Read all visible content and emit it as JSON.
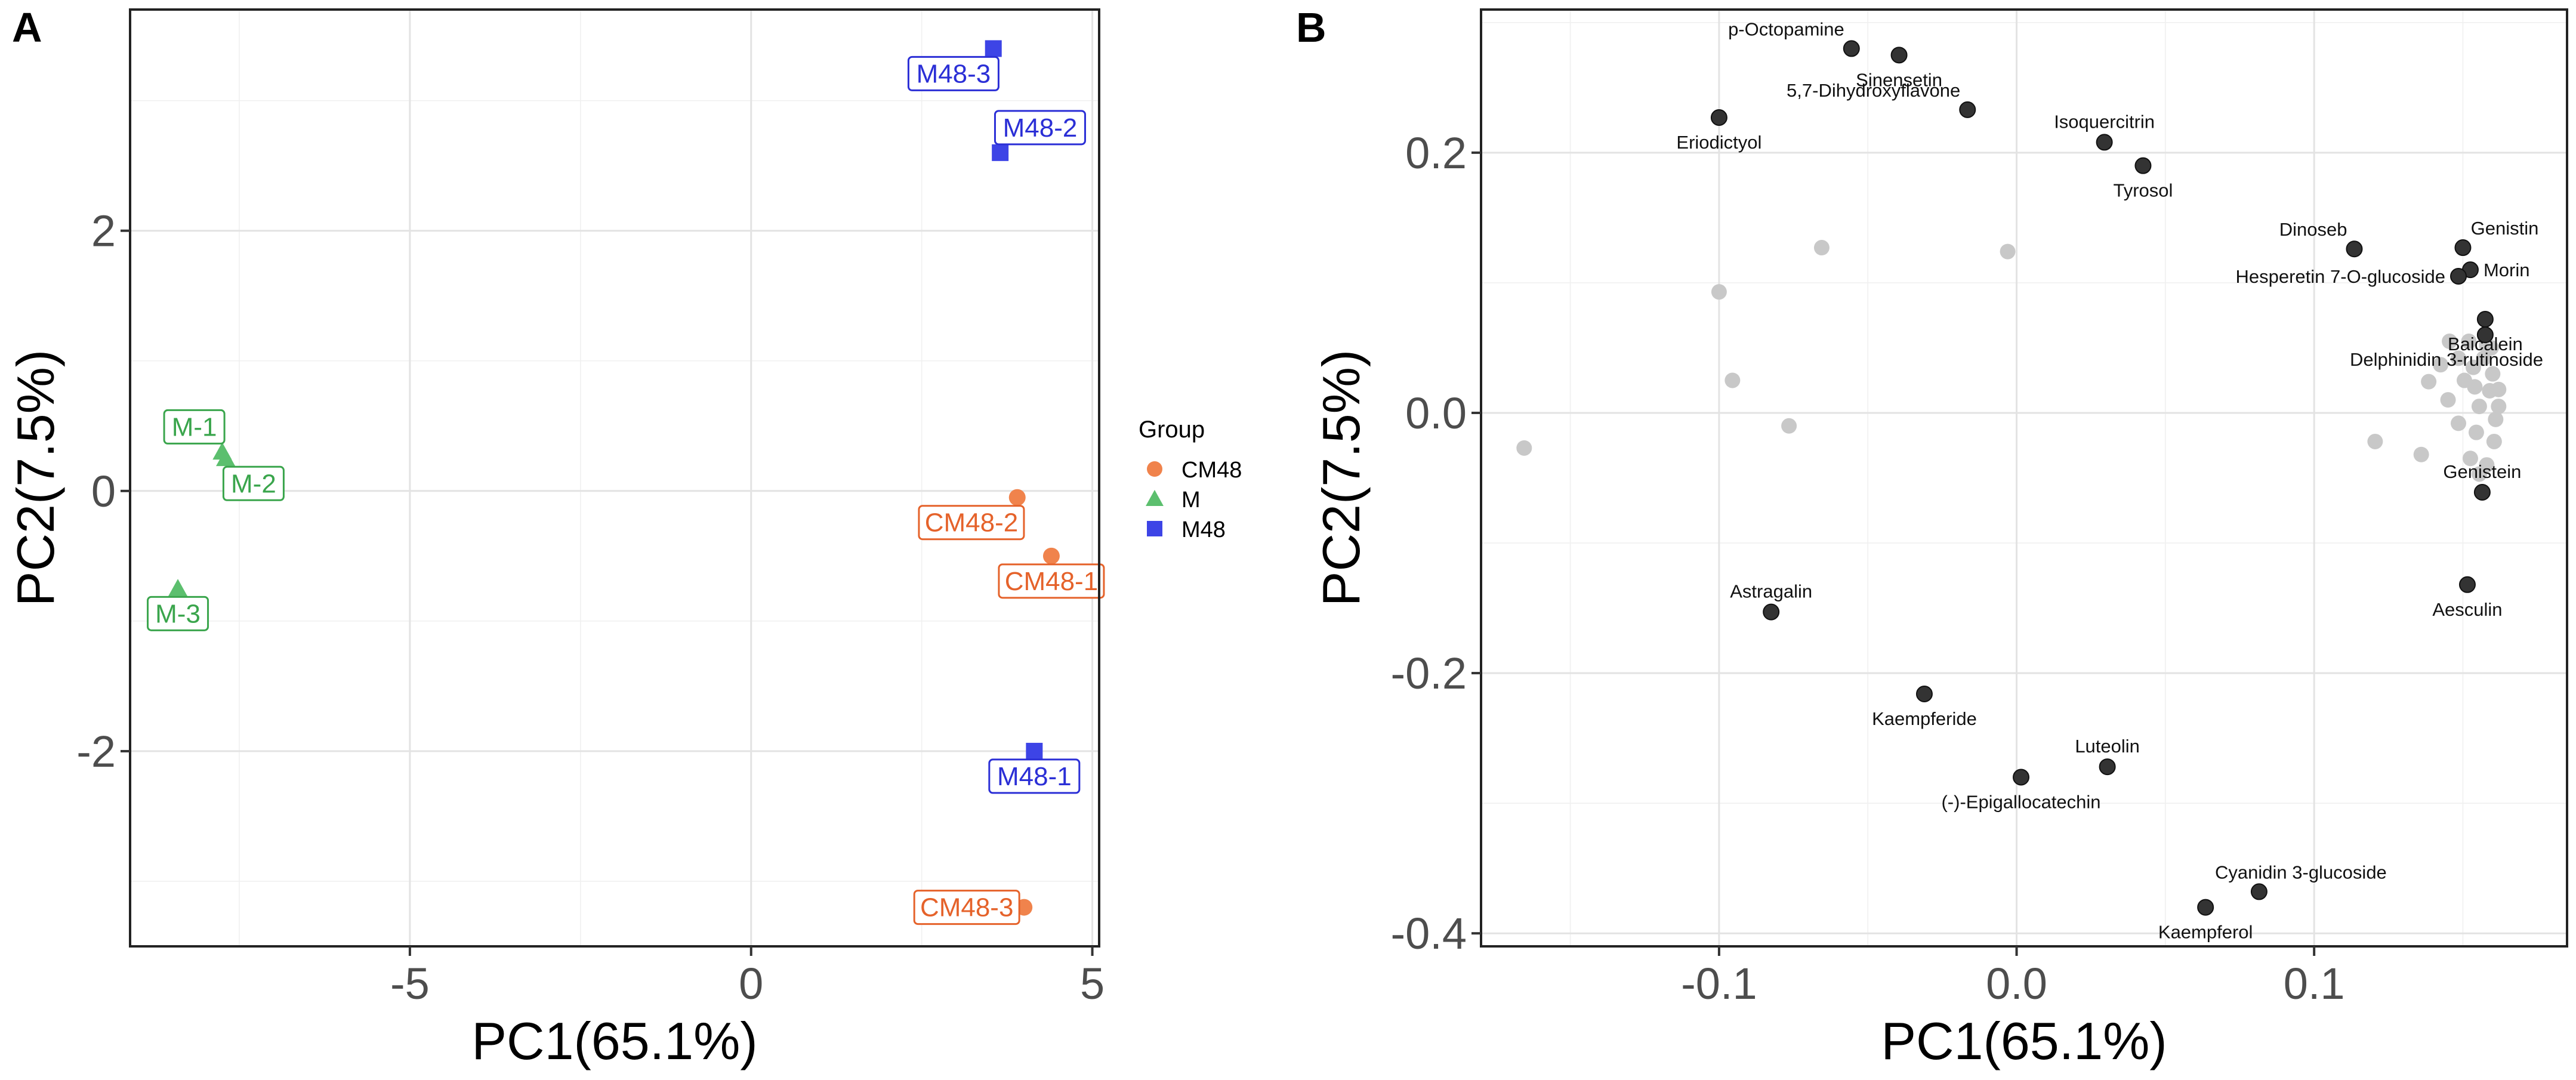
{
  "chart_data": [
    {
      "panel": "A",
      "type": "scatter",
      "xlabel": "PC1(65.1%)",
      "ylabel": "PC2(7.5%)",
      "xlim": [
        -9.1,
        5.1
      ],
      "ylim": [
        -3.5,
        3.7
      ],
      "xticks": [
        {
          "v": -5,
          "label": "-5"
        },
        {
          "v": 0,
          "label": "0"
        },
        {
          "v": 5,
          "label": "5"
        }
      ],
      "yticks": [
        {
          "v": -2,
          "label": "-2"
        },
        {
          "v": 0,
          "label": "0"
        },
        {
          "v": 2,
          "label": "2"
        }
      ],
      "legend": {
        "title": "Group",
        "position": "right",
        "entries": [
          {
            "label": "CM48",
            "shape": "circle",
            "color": "#f0834c"
          },
          {
            "label": "M",
            "shape": "triangle",
            "color": "#5cbf6e"
          },
          {
            "label": "M48",
            "shape": "square",
            "color": "#3d44e6"
          }
        ]
      },
      "label_colors": {
        "CM48": "#e5622a",
        "M": "#3aa54c",
        "M48": "#2b2fd6"
      },
      "points": [
        {
          "label": "CM48-1",
          "group": "CM48",
          "x": 4.4,
          "y": -0.5,
          "lab_side": "below"
        },
        {
          "label": "CM48-2",
          "group": "CM48",
          "x": 3.9,
          "y": -0.05,
          "lab_side": "below-left"
        },
        {
          "label": "CM48-3",
          "group": "CM48",
          "x": 4.0,
          "y": -3.2,
          "lab_side": "left"
        },
        {
          "label": "M-1",
          "group": "M",
          "x": -7.75,
          "y": 0.3,
          "lab_side": "above-left"
        },
        {
          "label": "M-2",
          "group": "M",
          "x": -7.7,
          "y": 0.25,
          "lab_side": "below-right"
        },
        {
          "label": "M-3",
          "group": "M",
          "x": -8.4,
          "y": -0.75,
          "lab_side": "below"
        },
        {
          "label": "M48-1",
          "group": "M48",
          "x": 4.15,
          "y": -2.0,
          "lab_side": "below"
        },
        {
          "label": "M48-2",
          "group": "M48",
          "x": 3.65,
          "y": 2.6,
          "lab_side": "above-right"
        },
        {
          "label": "M48-3",
          "group": "M48",
          "x": 3.55,
          "y": 3.4,
          "lab_side": "below-left"
        }
      ]
    },
    {
      "panel": "B",
      "type": "scatter",
      "xlabel": "PC1(65.1%)",
      "ylabel": "PC2(7.5%)",
      "xlim": [
        -0.18,
        0.185
      ],
      "ylim": [
        -0.41,
        0.31
      ],
      "xticks": [
        {
          "v": -0.1,
          "label": "-0.1"
        },
        {
          "v": 0,
          "label": "0.0"
        },
        {
          "v": 0.1,
          "label": "0.1"
        }
      ],
      "yticks": [
        {
          "v": -0.4,
          "label": "-0.4"
        },
        {
          "v": -0.2,
          "label": "-0.2"
        },
        {
          "v": 0,
          "label": "0.0"
        },
        {
          "v": 0.2,
          "label": "0.2"
        }
      ],
      "highlight_color": "#333333",
      "background_color": "#c8c8c8",
      "labeled_points": [
        {
          "label": "p-Octopamine",
          "x": -0.0555,
          "y": 0.28,
          "lab_side": "above-left"
        },
        {
          "label": "Sinensetin",
          "x": -0.0395,
          "y": 0.275,
          "lab_side": "below"
        },
        {
          "label": "5,7-Dihydroxyflavone",
          "x": -0.0165,
          "y": 0.233,
          "lab_side": "above-left"
        },
        {
          "label": "Eriodictyol",
          "x": -0.1,
          "y": 0.227,
          "lab_side": "below"
        },
        {
          "label": "Isoquercitrin",
          "x": 0.0295,
          "y": 0.208,
          "lab_side": "above"
        },
        {
          "label": "Tyrosol",
          "x": 0.0425,
          "y": 0.19,
          "lab_side": "below"
        },
        {
          "label": "Dinoseb",
          "x": 0.1135,
          "y": 0.126,
          "lab_side": "above-left"
        },
        {
          "label": "Genistin",
          "x": 0.15,
          "y": 0.127,
          "lab_side": "above-right"
        },
        {
          "label": "Morin",
          "x": 0.1525,
          "y": 0.11,
          "lab_side": "right"
        },
        {
          "label": "Hesperetin 7-O-glucoside",
          "x": 0.1485,
          "y": 0.105,
          "lab_side": "left"
        },
        {
          "label": "Baicalein",
          "x": 0.1575,
          "y": 0.072,
          "lab_side": "below"
        },
        {
          "label": "Delphinidin 3-rutinoside",
          "x": 0.1575,
          "y": 0.06,
          "lab_side": "below-label"
        },
        {
          "label": "Genistein",
          "x": 0.1565,
          "y": -0.061,
          "lab_side": "above"
        },
        {
          "label": "Aesculin",
          "x": 0.1515,
          "y": -0.132,
          "lab_side": "below"
        },
        {
          "label": "Astragalin",
          "x": -0.0825,
          "y": -0.153,
          "lab_side": "above"
        },
        {
          "label": "Kaempferide",
          "x": -0.031,
          "y": -0.216,
          "lab_side": "below"
        },
        {
          "label": "Luteolin",
          "x": 0.0305,
          "y": -0.272,
          "lab_side": "above"
        },
        {
          "label": "(-)-Epigallocatechin",
          "x": 0.0015,
          "y": -0.28,
          "lab_side": "below"
        },
        {
          "label": "Cyanidin 3-glucoside",
          "x": 0.0815,
          "y": -0.368,
          "lab_side": "above-right"
        },
        {
          "label": "Kaempferol",
          "x": 0.0635,
          "y": -0.38,
          "lab_side": "below"
        }
      ],
      "background_points": [
        {
          "x": -0.1655,
          "y": -0.027
        },
        {
          "x": -0.0655,
          "y": 0.127
        },
        {
          "x": -0.003,
          "y": 0.124
        },
        {
          "x": -0.1,
          "y": 0.093
        },
        {
          "x": -0.0955,
          "y": 0.025
        },
        {
          "x": -0.0765,
          "y": -0.01
        },
        {
          "x": 0.1205,
          "y": -0.022
        },
        {
          "x": 0.136,
          "y": -0.032
        },
        {
          "x": 0.1385,
          "y": 0.024
        },
        {
          "x": 0.1425,
          "y": 0.037
        },
        {
          "x": 0.1455,
          "y": 0.055
        },
        {
          "x": 0.1485,
          "y": 0.042
        },
        {
          "x": 0.1505,
          "y": 0.025
        },
        {
          "x": 0.152,
          "y": 0.055
        },
        {
          "x": 0.154,
          "y": 0.02
        },
        {
          "x": 0.1555,
          "y": 0.005
        },
        {
          "x": 0.157,
          "y": 0.042
        },
        {
          "x": 0.158,
          "y": 0.052
        },
        {
          "x": 0.159,
          "y": 0.017
        },
        {
          "x": 0.16,
          "y": 0.03
        },
        {
          "x": 0.161,
          "y": -0.005
        },
        {
          "x": 0.1595,
          "y": 0.05
        },
        {
          "x": 0.162,
          "y": 0.018
        },
        {
          "x": 0.1605,
          "y": -0.022
        },
        {
          "x": 0.162,
          "y": 0.005
        },
        {
          "x": 0.1545,
          "y": -0.015
        },
        {
          "x": 0.1525,
          "y": -0.035
        },
        {
          "x": 0.1555,
          "y": -0.047
        },
        {
          "x": 0.158,
          "y": -0.04
        },
        {
          "x": 0.1485,
          "y": -0.008
        },
        {
          "x": 0.145,
          "y": 0.01
        },
        {
          "x": 0.1535,
          "y": 0.035
        }
      ]
    }
  ]
}
